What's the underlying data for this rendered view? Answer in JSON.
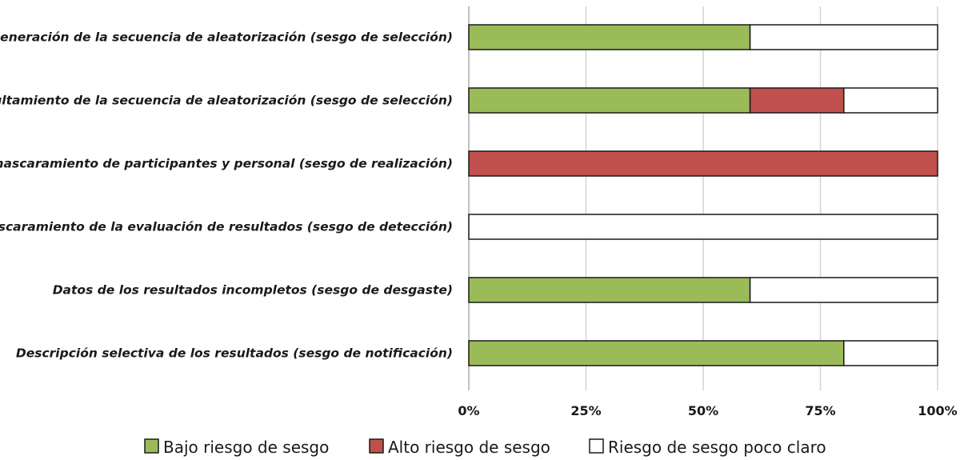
{
  "chart_data": {
    "type": "bar",
    "orientation": "horizontal",
    "stacked": true,
    "categories": [
      "Generación de la secuencia de aleatorización (sesgo de selección)",
      "Ocultamiento de la secuencia de aleatorización (sesgo de selección)",
      "Enmascaramiento de participantes y personal (sesgo de realización)",
      "Enmascaramiento de la evaluación de resultados (sesgo de detección)",
      "Datos de los resultados incompletos (sesgo de desgaste)",
      "Descripción selectiva de los resultados (sesgo de notificación)"
    ],
    "series": [
      {
        "name": "Bajo riesgo de sesgo",
        "color": "#9bbb59",
        "values": [
          60,
          60,
          0,
          0,
          60,
          80
        ]
      },
      {
        "name": "Alto riesgo de sesgo",
        "color": "#c0504d",
        "values": [
          0,
          20,
          100,
          0,
          0,
          0
        ]
      },
      {
        "name": "Riesgo de sesgo poco claro",
        "color": "#ffffff",
        "values": [
          40,
          20,
          0,
          100,
          40,
          20
        ]
      }
    ],
    "x_ticks": [
      0,
      25,
      50,
      75,
      100
    ],
    "x_tick_labels": [
      "0%",
      "25%",
      "50%",
      "75%",
      "100%"
    ],
    "xlim": [
      0,
      100
    ],
    "grid": true,
    "legend_position": "bottom"
  }
}
